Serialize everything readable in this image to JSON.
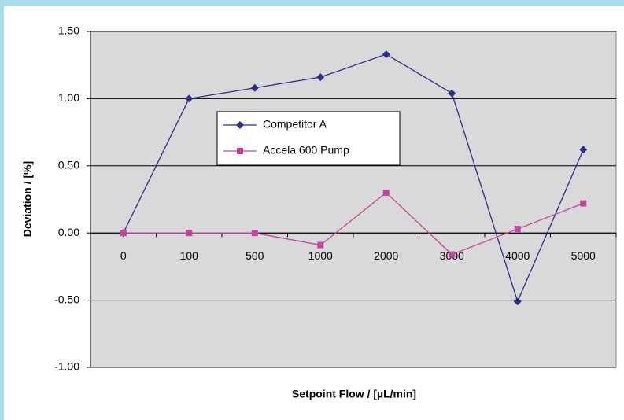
{
  "chart_data": {
    "type": "line",
    "xlabel": "Setpoint Flow / [µL/min]",
    "ylabel": "Deviation / [%]",
    "categories": [
      "0",
      "100",
      "500",
      "1000",
      "2000",
      "3000",
      "4000",
      "5000"
    ],
    "series": [
      {
        "name": "Competitor A",
        "color": "#2b2f86",
        "marker": "diamond",
        "values": [
          0,
          1.0,
          1.08,
          1.16,
          1.33,
          1.04,
          -0.51,
          0.62
        ]
      },
      {
        "name": "Accela 600 Pump",
        "color": "#c0479a",
        "marker": "square",
        "values": [
          0,
          0,
          0,
          -0.09,
          0.3,
          -0.16,
          0.03,
          0.22
        ]
      }
    ],
    "ylim": [
      -1.0,
      1.5
    ],
    "yticks": [
      {
        "value": -1.0,
        "label": "-1.00"
      },
      {
        "value": -0.5,
        "label": "-0.50"
      },
      {
        "value": 0,
        "label": "0.00"
      },
      {
        "value": 0.5,
        "label": "0.50"
      },
      {
        "value": 1.0,
        "label": "1.00"
      },
      {
        "value": 1.5,
        "label": "1.50"
      }
    ],
    "grid": true,
    "legend": "upper-center"
  }
}
